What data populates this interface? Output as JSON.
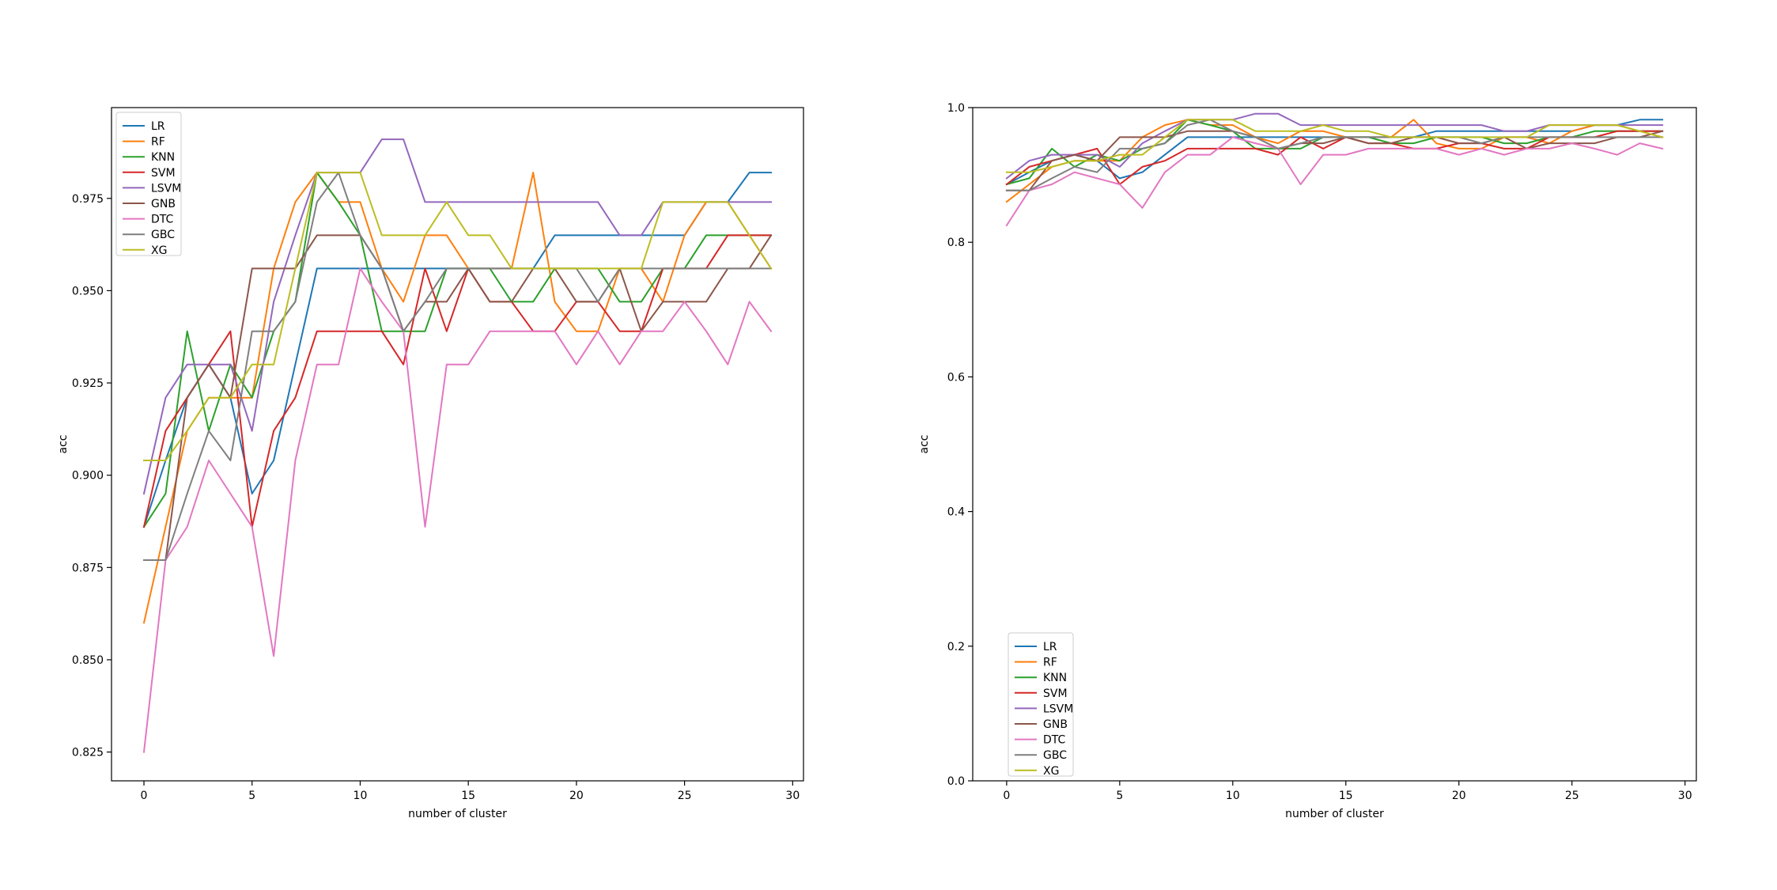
{
  "chart_data": [
    {
      "type": "line",
      "xlabel": "number of cluster",
      "ylabel": "acc",
      "xlim": [
        -1.5,
        30.5
      ],
      "ylim": [
        0.8172,
        0.9996
      ],
      "xticks": [
        0,
        5,
        10,
        15,
        20,
        25,
        30
      ],
      "xtick_labels": [
        "0",
        "5",
        "10",
        "15",
        "20",
        "25",
        "30"
      ],
      "yticks": [
        0.825,
        0.85,
        0.875,
        0.9,
        0.925,
        0.95,
        0.975
      ],
      "ytick_labels": [
        "0.825",
        "0.850",
        "0.875",
        "0.900",
        "0.925",
        "0.950",
        "0.975"
      ],
      "grid": false,
      "legend_position": "top-left",
      "x": [
        0,
        1,
        2,
        3,
        4,
        5,
        6,
        7,
        8,
        9,
        10,
        11,
        12,
        13,
        14,
        15,
        16,
        17,
        18,
        19,
        20,
        21,
        22,
        23,
        24,
        25,
        26,
        27,
        28,
        29
      ],
      "series": [
        {
          "name": "LR",
          "color": "#1f77b4",
          "values": [
            0.886,
            0.904,
            0.921,
            0.93,
            0.921,
            0.895,
            0.904,
            0.93,
            0.956,
            0.956,
            0.956,
            0.956,
            0.956,
            0.956,
            0.956,
            0.956,
            0.956,
            0.956,
            0.956,
            0.965,
            0.965,
            0.965,
            0.965,
            0.965,
            0.965,
            0.965,
            0.974,
            0.974,
            0.982,
            0.982
          ]
        },
        {
          "name": "RF",
          "color": "#ff7f0e",
          "values": [
            0.86,
            0.886,
            0.912,
            0.921,
            0.921,
            0.921,
            0.956,
            0.974,
            0.982,
            0.974,
            0.974,
            0.956,
            0.947,
            0.965,
            0.965,
            0.956,
            0.956,
            0.956,
            0.982,
            0.947,
            0.939,
            0.939,
            0.956,
            0.956,
            0.947,
            0.965,
            0.974,
            0.974,
            0.965,
            0.956
          ]
        },
        {
          "name": "KNN",
          "color": "#2ca02c",
          "values": [
            0.886,
            0.895,
            0.939,
            0.912,
            0.93,
            0.921,
            0.939,
            0.947,
            0.982,
            0.974,
            0.965,
            0.939,
            0.939,
            0.939,
            0.956,
            0.956,
            0.956,
            0.947,
            0.947,
            0.956,
            0.956,
            0.956,
            0.947,
            0.947,
            0.956,
            0.956,
            0.965,
            0.965,
            0.965,
            0.965
          ]
        },
        {
          "name": "SVM",
          "color": "#d62728",
          "values": [
            0.886,
            0.912,
            0.921,
            0.93,
            0.939,
            0.886,
            0.912,
            0.921,
            0.939,
            0.939,
            0.939,
            0.939,
            0.93,
            0.956,
            0.939,
            0.956,
            0.947,
            0.947,
            0.939,
            0.939,
            0.947,
            0.947,
            0.939,
            0.939,
            0.956,
            0.956,
            0.956,
            0.965,
            0.965,
            0.965
          ]
        },
        {
          "name": "LSVM",
          "color": "#9467bd",
          "values": [
            0.895,
            0.921,
            0.93,
            0.93,
            0.93,
            0.912,
            0.947,
            0.965,
            0.982,
            0.982,
            0.982,
            0.991,
            0.991,
            0.974,
            0.974,
            0.974,
            0.974,
            0.974,
            0.974,
            0.974,
            0.974,
            0.974,
            0.965,
            0.965,
            0.974,
            0.974,
            0.974,
            0.974,
            0.974,
            0.974
          ]
        },
        {
          "name": "GNB",
          "color": "#8c564b",
          "values": [
            0.877,
            0.877,
            0.921,
            0.93,
            0.921,
            0.956,
            0.956,
            0.956,
            0.965,
            0.965,
            0.965,
            0.956,
            0.939,
            0.947,
            0.947,
            0.956,
            0.947,
            0.947,
            0.956,
            0.956,
            0.947,
            0.947,
            0.956,
            0.939,
            0.947,
            0.947,
            0.947,
            0.956,
            0.956,
            0.965
          ]
        },
        {
          "name": "DTC",
          "color": "#e377c2",
          "values": [
            0.825,
            0.877,
            0.886,
            0.904,
            0.895,
            0.886,
            0.851,
            0.904,
            0.93,
            0.93,
            0.956,
            0.947,
            0.939,
            0.886,
            0.93,
            0.93,
            0.939,
            0.939,
            0.939,
            0.939,
            0.93,
            0.939,
            0.93,
            0.939,
            0.939,
            0.947,
            0.939,
            0.93,
            0.947,
            0.939
          ]
        },
        {
          "name": "GBC",
          "color": "#7f7f7f",
          "values": [
            0.877,
            0.877,
            0.895,
            0.912,
            0.904,
            0.939,
            0.939,
            0.947,
            0.974,
            0.982,
            0.965,
            0.956,
            0.939,
            0.947,
            0.956,
            0.956,
            0.956,
            0.956,
            0.956,
            0.956,
            0.956,
            0.947,
            0.956,
            0.956,
            0.956,
            0.956,
            0.956,
            0.956,
            0.956,
            0.956
          ]
        },
        {
          "name": "XG",
          "color": "#bcbd22",
          "values": [
            0.904,
            0.904,
            0.912,
            0.921,
            0.921,
            0.93,
            0.93,
            0.956,
            0.982,
            0.982,
            0.982,
            0.965,
            0.965,
            0.965,
            0.974,
            0.965,
            0.965,
            0.956,
            0.956,
            0.956,
            0.956,
            0.956,
            0.956,
            0.956,
            0.974,
            0.974,
            0.974,
            0.974,
            0.965,
            0.956
          ]
        }
      ]
    },
    {
      "type": "line",
      "xlabel": "number of cluster",
      "ylabel": "acc",
      "xlim": [
        -1.5,
        30.5
      ],
      "ylim": [
        0.0,
        1.0
      ],
      "xticks": [
        0,
        5,
        10,
        15,
        20,
        25,
        30
      ],
      "xtick_labels": [
        "0",
        "5",
        "10",
        "15",
        "20",
        "25",
        "30"
      ],
      "yticks": [
        0.0,
        0.2,
        0.4,
        0.6,
        0.8,
        1.0
      ],
      "ytick_labels": [
        "0.0",
        "0.2",
        "0.4",
        "0.6",
        "0.8",
        "1.0"
      ],
      "grid": false,
      "legend_position": "bottom-left",
      "x": [
        0,
        1,
        2,
        3,
        4,
        5,
        6,
        7,
        8,
        9,
        10,
        11,
        12,
        13,
        14,
        15,
        16,
        17,
        18,
        19,
        20,
        21,
        22,
        23,
        24,
        25,
        26,
        27,
        28,
        29
      ],
      "series": [
        {
          "name": "LR",
          "color": "#1f77b4",
          "values": [
            0.886,
            0.904,
            0.921,
            0.93,
            0.921,
            0.895,
            0.904,
            0.93,
            0.956,
            0.956,
            0.956,
            0.956,
            0.956,
            0.956,
            0.956,
            0.956,
            0.956,
            0.956,
            0.956,
            0.965,
            0.965,
            0.965,
            0.965,
            0.965,
            0.965,
            0.965,
            0.974,
            0.974,
            0.982,
            0.982
          ]
        },
        {
          "name": "RF",
          "color": "#ff7f0e",
          "values": [
            0.86,
            0.886,
            0.912,
            0.921,
            0.921,
            0.921,
            0.956,
            0.974,
            0.982,
            0.974,
            0.974,
            0.956,
            0.947,
            0.965,
            0.965,
            0.956,
            0.956,
            0.956,
            0.982,
            0.947,
            0.939,
            0.939,
            0.956,
            0.956,
            0.947,
            0.965,
            0.974,
            0.974,
            0.965,
            0.956
          ]
        },
        {
          "name": "KNN",
          "color": "#2ca02c",
          "values": [
            0.886,
            0.895,
            0.939,
            0.912,
            0.93,
            0.921,
            0.939,
            0.947,
            0.982,
            0.974,
            0.965,
            0.939,
            0.939,
            0.939,
            0.956,
            0.956,
            0.956,
            0.947,
            0.947,
            0.956,
            0.956,
            0.956,
            0.947,
            0.947,
            0.956,
            0.956,
            0.965,
            0.965,
            0.965,
            0.965
          ]
        },
        {
          "name": "SVM",
          "color": "#d62728",
          "values": [
            0.886,
            0.912,
            0.921,
            0.93,
            0.939,
            0.886,
            0.912,
            0.921,
            0.939,
            0.939,
            0.939,
            0.939,
            0.93,
            0.956,
            0.939,
            0.956,
            0.947,
            0.947,
            0.939,
            0.939,
            0.947,
            0.947,
            0.939,
            0.939,
            0.956,
            0.956,
            0.956,
            0.965,
            0.965,
            0.965
          ]
        },
        {
          "name": "LSVM",
          "color": "#9467bd",
          "values": [
            0.895,
            0.921,
            0.93,
            0.93,
            0.93,
            0.912,
            0.947,
            0.965,
            0.982,
            0.982,
            0.982,
            0.991,
            0.991,
            0.974,
            0.974,
            0.974,
            0.974,
            0.974,
            0.974,
            0.974,
            0.974,
            0.974,
            0.965,
            0.965,
            0.974,
            0.974,
            0.974,
            0.974,
            0.974,
            0.974
          ]
        },
        {
          "name": "GNB",
          "color": "#8c564b",
          "values": [
            0.877,
            0.877,
            0.921,
            0.93,
            0.921,
            0.956,
            0.956,
            0.956,
            0.965,
            0.965,
            0.965,
            0.956,
            0.939,
            0.947,
            0.947,
            0.956,
            0.947,
            0.947,
            0.956,
            0.956,
            0.947,
            0.947,
            0.956,
            0.939,
            0.947,
            0.947,
            0.947,
            0.956,
            0.956,
            0.965
          ]
        },
        {
          "name": "DTC",
          "color": "#e377c2",
          "values": [
            0.825,
            0.877,
            0.886,
            0.904,
            0.895,
            0.886,
            0.851,
            0.904,
            0.93,
            0.93,
            0.956,
            0.947,
            0.939,
            0.886,
            0.93,
            0.93,
            0.939,
            0.939,
            0.939,
            0.939,
            0.93,
            0.939,
            0.93,
            0.939,
            0.939,
            0.947,
            0.939,
            0.93,
            0.947,
            0.939
          ]
        },
        {
          "name": "GBC",
          "color": "#7f7f7f",
          "values": [
            0.877,
            0.877,
            0.895,
            0.912,
            0.904,
            0.939,
            0.939,
            0.947,
            0.974,
            0.982,
            0.965,
            0.956,
            0.939,
            0.947,
            0.956,
            0.956,
            0.956,
            0.956,
            0.956,
            0.956,
            0.956,
            0.947,
            0.956,
            0.956,
            0.956,
            0.956,
            0.956,
            0.956,
            0.956,
            0.956
          ]
        },
        {
          "name": "XG",
          "color": "#bcbd22",
          "values": [
            0.904,
            0.904,
            0.912,
            0.921,
            0.921,
            0.93,
            0.93,
            0.956,
            0.982,
            0.982,
            0.982,
            0.965,
            0.965,
            0.965,
            0.974,
            0.965,
            0.965,
            0.956,
            0.956,
            0.956,
            0.956,
            0.956,
            0.956,
            0.956,
            0.974,
            0.974,
            0.974,
            0.974,
            0.965,
            0.956
          ]
        }
      ]
    }
  ]
}
